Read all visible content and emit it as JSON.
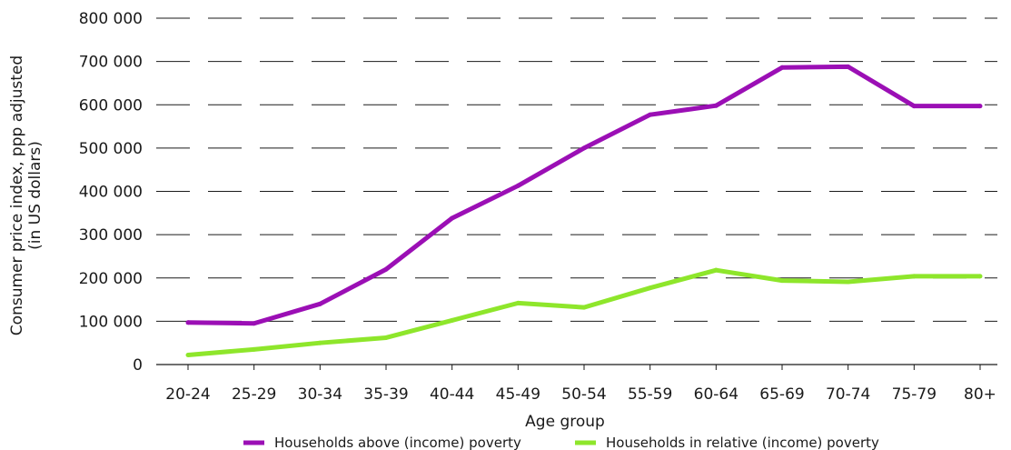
{
  "chart_data": {
    "type": "line",
    "title": "",
    "xlabel": "Age group",
    "ylabel": [
      "Consumer price index, ppp adjusted",
      "(in US dollars)"
    ],
    "categories": [
      "20-24",
      "25-29",
      "30-34",
      "35-39",
      "40-44",
      "45-49",
      "50-54",
      "55-59",
      "60-64",
      "65-69",
      "70-74",
      "75-79",
      "80+"
    ],
    "ylim": [
      0,
      800000
    ],
    "yticks": [
      0,
      100000,
      200000,
      300000,
      400000,
      500000,
      600000,
      700000,
      800000
    ],
    "ytick_labels": [
      "0",
      "100 000",
      "200 000",
      "300 000",
      "400 000",
      "500 000",
      "600 000",
      "700 000",
      "800 000"
    ],
    "grid": "horizontal dashed",
    "legend_position": "bottom",
    "series": [
      {
        "name": "Households above (income) poverty",
        "color": "#9b0fb5",
        "values": [
          97000,
          95000,
          140000,
          220000,
          338000,
          413000,
          500000,
          577000,
          598000,
          686000,
          688000,
          597000,
          597000
        ]
      },
      {
        "name": "Households in relative (income) poverty",
        "color": "#8ee62b",
        "values": [
          22000,
          35000,
          50000,
          62000,
          102000,
          142000,
          132000,
          177000,
          218000,
          194000,
          191000,
          204000,
          204000
        ]
      }
    ]
  }
}
